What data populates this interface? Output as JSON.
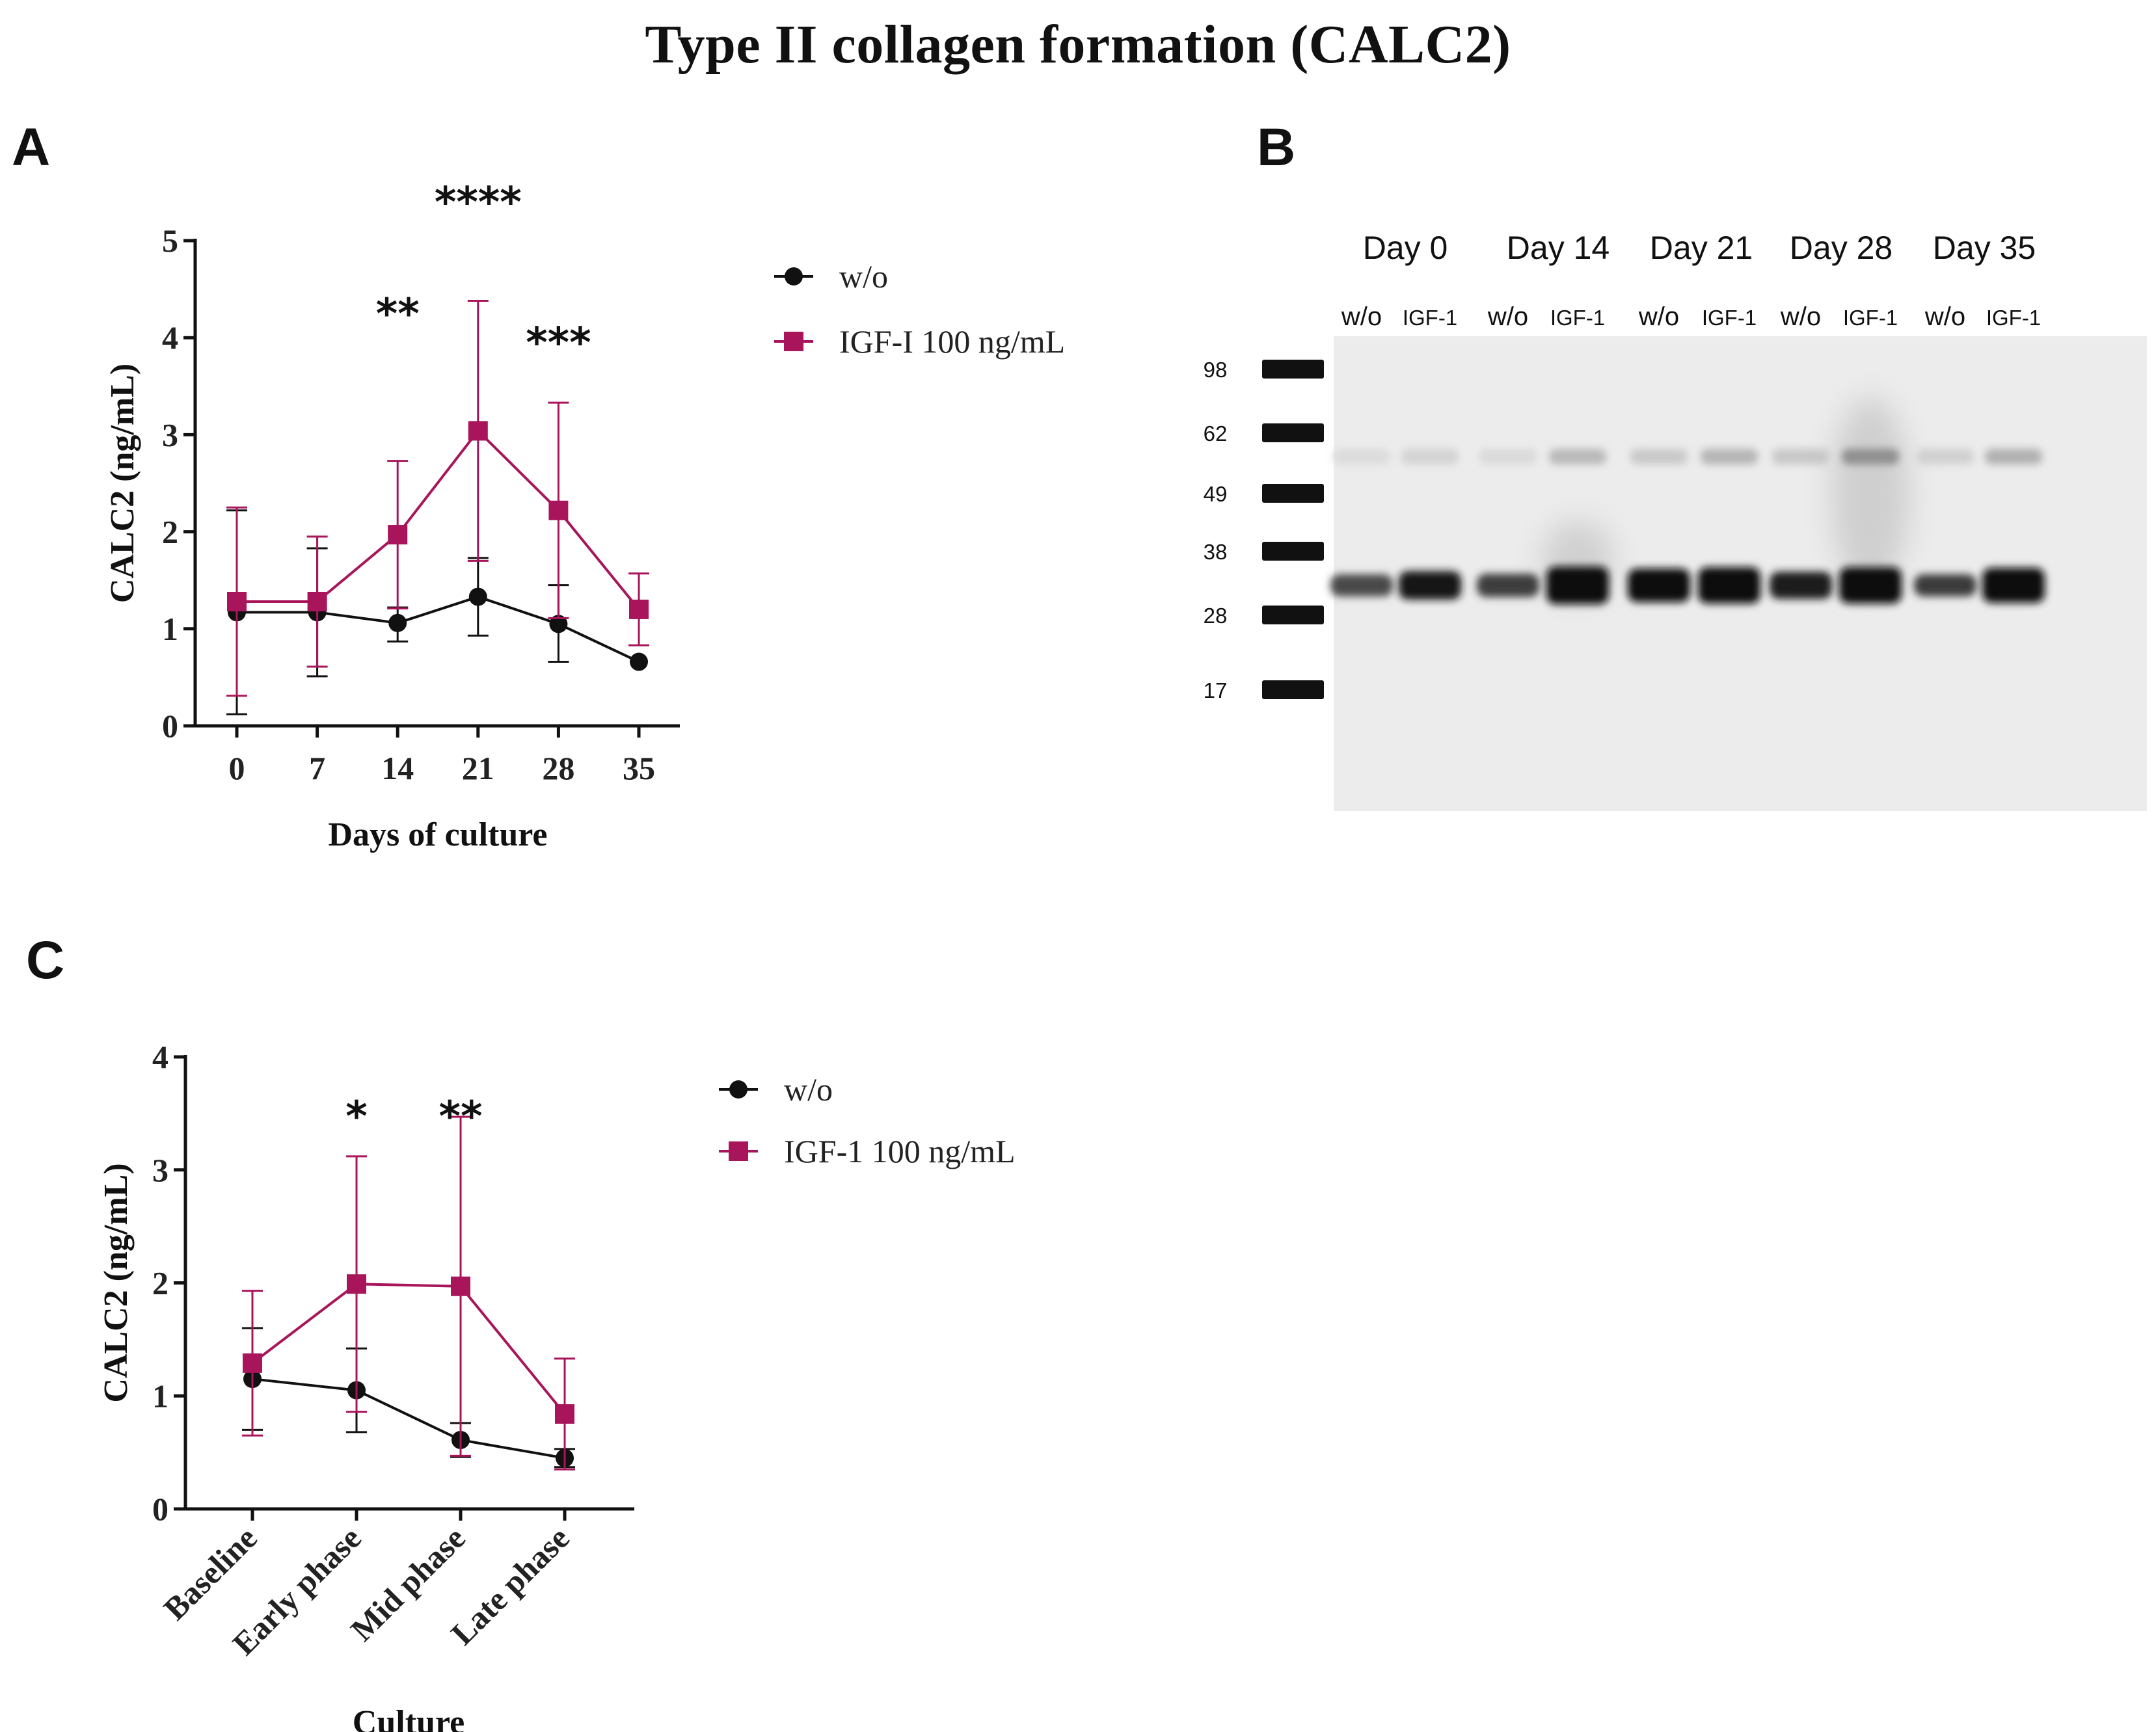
{
  "figure": {
    "title": "Type II collagen formation (CALC2)",
    "colors": {
      "wo": "#111111",
      "igf": "#a8155a"
    }
  },
  "chart_data": [
    {
      "panel": "A",
      "type": "line",
      "title": "",
      "xlabel": "Days of culture",
      "ylabel": "CALC2 (ng/mL)",
      "categories": [
        "0",
        "7",
        "14",
        "21",
        "28",
        "35"
      ],
      "ylim": [
        0,
        5
      ],
      "yticks": [
        "0",
        "1",
        "2",
        "3",
        "4",
        "5"
      ],
      "series": [
        {
          "name": "w/o",
          "marker": "circle",
          "color": "#111111",
          "values": [
            1.17,
            1.17,
            1.06,
            1.33,
            1.05,
            0.66
          ],
          "err_upper": [
            2.22,
            1.83,
            1.22,
            1.73,
            1.45,
            0.66
          ],
          "err_lower": [
            0.12,
            0.51,
            0.87,
            0.93,
            0.66,
            0.66
          ]
        },
        {
          "name": "IGF-I 100 ng/mL",
          "marker": "square",
          "color": "#a8155a",
          "values": [
            1.28,
            1.28,
            1.97,
            3.04,
            2.22,
            1.2
          ],
          "err_upper": [
            2.25,
            1.95,
            2.73,
            4.38,
            3.33,
            1.57
          ],
          "err_lower": [
            0.31,
            0.61,
            1.21,
            1.7,
            1.11,
            0.83
          ]
        }
      ],
      "annotations": [
        {
          "category_index": 2,
          "y": 4.3,
          "text": "**"
        },
        {
          "category_index": 3,
          "y": 5.45,
          "text": "****"
        },
        {
          "category_index": 4,
          "y": 4.0,
          "text": "***"
        }
      ],
      "legend": [
        "w/o",
        "IGF-I 100 ng/mL"
      ]
    },
    {
      "panel": "C",
      "type": "line",
      "title": "",
      "xlabel": "Culture",
      "ylabel": "CALC2 (ng/mL)",
      "categories": [
        "Baseline",
        "Early phase",
        "Mid phase",
        "Late phase"
      ],
      "ylim": [
        0,
        4
      ],
      "yticks": [
        "0",
        "1",
        "2",
        "3",
        "4"
      ],
      "series": [
        {
          "name": "w/o",
          "marker": "circle",
          "color": "#111111",
          "values": [
            1.15,
            1.05,
            0.61,
            0.45
          ],
          "err_upper": [
            1.6,
            1.42,
            0.76,
            0.53
          ],
          "err_lower": [
            0.7,
            0.68,
            0.46,
            0.37
          ]
        },
        {
          "name": "IGF-1 100 ng/mL",
          "marker": "square",
          "color": "#a8155a",
          "values": [
            1.29,
            1.99,
            1.97,
            0.84
          ],
          "err_upper": [
            1.93,
            3.12,
            3.47,
            1.33
          ],
          "err_lower": [
            0.65,
            0.86,
            0.47,
            0.35
          ]
        }
      ],
      "annotations": [
        {
          "category_index": 1,
          "y": 3.52,
          "text": "*"
        },
        {
          "category_index": 2,
          "y": 3.52,
          "text": "**"
        }
      ],
      "legend": [
        "w/o",
        "IGF-1 100 ng/mL"
      ]
    }
  ],
  "blot": {
    "panel": "B",
    "days": [
      "Day 0",
      "Day 14",
      "Day 21",
      "Day 28",
      "Day 35"
    ],
    "lanes": [
      "w/o",
      "IGF-1",
      "w/o",
      "IGF-1",
      "w/o",
      "IGF-1",
      "w/o",
      "IGF-1",
      "w/o",
      "IGF-1"
    ],
    "markers": [
      "98",
      "62",
      "49",
      "38",
      "28",
      "17"
    ]
  }
}
